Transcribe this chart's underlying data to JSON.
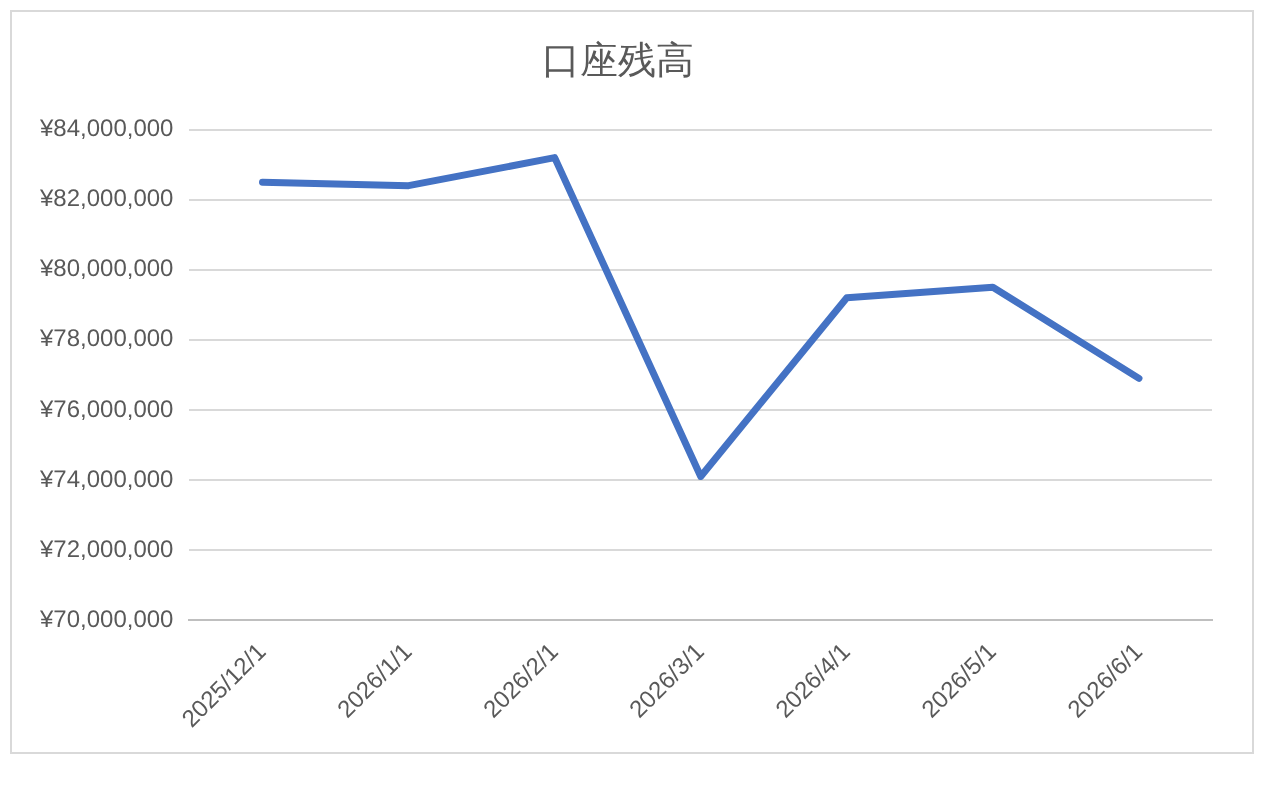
{
  "chart_data": {
    "type": "line",
    "title": "口座残高",
    "categories": [
      "2025/12/1",
      "2026/1/1",
      "2026/2/1",
      "2026/3/1",
      "2026/4/1",
      "2026/5/1",
      "2026/6/1"
    ],
    "series": [
      {
        "color": "#4472c4",
        "values": [
          82500000,
          82400000,
          83200000,
          74100000,
          79200000,
          79500000,
          76900000
        ]
      }
    ],
    "ylim": [
      70000000,
      84000000
    ],
    "yticks": [
      {
        "value": 70000000,
        "label": "¥70,000,000"
      },
      {
        "value": 72000000,
        "label": "¥72,000,000"
      },
      {
        "value": 74000000,
        "label": "¥74,000,000"
      },
      {
        "value": 76000000,
        "label": "¥76,000,000"
      },
      {
        "value": 78000000,
        "label": "¥78,000,000"
      },
      {
        "value": 80000000,
        "label": "¥80,000,000"
      },
      {
        "value": 82000000,
        "label": "¥82,000,000"
      },
      {
        "value": 84000000,
        "label": "¥84,000,000"
      }
    ],
    "grid": "y",
    "legend": false,
    "marker": "none",
    "line_style": "solid"
  }
}
